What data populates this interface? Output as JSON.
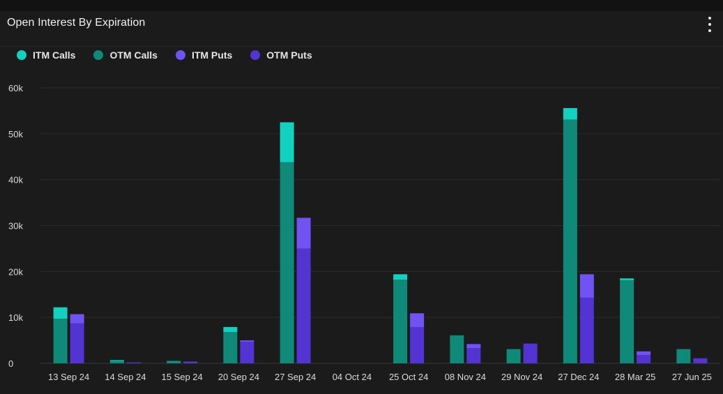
{
  "header": {
    "title": "Open Interest By Expiration",
    "menu_icon": "more-vertical-icon"
  },
  "colors": {
    "itm_calls": "#13d1bf",
    "otm_calls": "#0f8a78",
    "itm_puts": "#7152f3",
    "otm_puts": "#5333d1",
    "background": "#1b1b1c",
    "grid": "#2c2c2d"
  },
  "chart_data": {
    "type": "bar",
    "stacked": true,
    "title": "Open Interest By Expiration",
    "xlabel": "",
    "ylabel": "",
    "ylim": [
      0,
      60000
    ],
    "yticks": [
      0,
      10000,
      20000,
      30000,
      40000,
      50000,
      60000
    ],
    "ytick_labels": [
      "0",
      "10k",
      "20k",
      "30k",
      "40k",
      "50k",
      "60k"
    ],
    "grid": true,
    "legend_position": "top-left",
    "categories": [
      "13 Sep 24",
      "14 Sep 24",
      "15 Sep 24",
      "20 Sep 24",
      "27 Sep 24",
      "04 Oct 24",
      "25 Oct 24",
      "08 Nov 24",
      "29 Nov 24",
      "27 Dec 24",
      "28 Mar 25",
      "27 Jun 25"
    ],
    "series": [
      {
        "name": "ITM Calls",
        "stack": "calls",
        "values": [
          2500,
          200,
          100,
          1100,
          8700,
          0,
          1200,
          0,
          0,
          2500,
          400,
          0
        ]
      },
      {
        "name": "OTM Calls",
        "stack": "calls",
        "values": [
          9700,
          500,
          400,
          6800,
          43800,
          0,
          18200,
          6100,
          3100,
          53100,
          18100,
          3100
        ]
      },
      {
        "name": "ITM Puts",
        "stack": "puts",
        "values": [
          2000,
          0,
          0,
          300,
          6700,
          0,
          3000,
          900,
          0,
          5100,
          800,
          0
        ]
      },
      {
        "name": "OTM Puts",
        "stack": "puts",
        "values": [
          8700,
          200,
          400,
          4700,
          25000,
          0,
          7900,
          3300,
          4300,
          14300,
          1800,
          1100
        ]
      }
    ]
  }
}
